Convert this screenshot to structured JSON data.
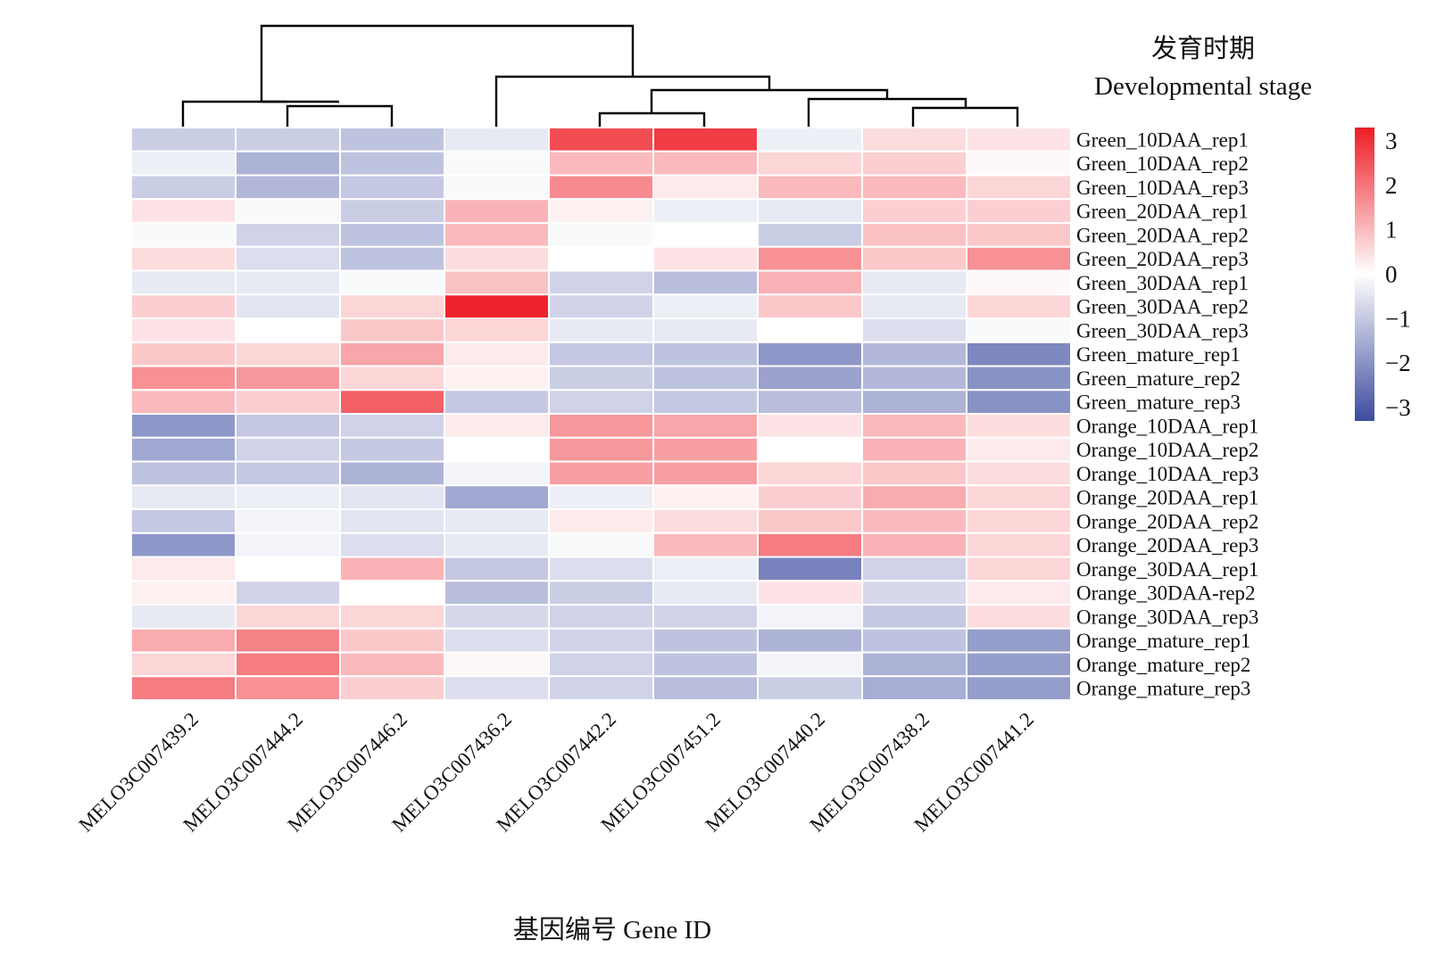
{
  "chart_data": {
    "type": "heatmap",
    "title": "",
    "legend_title_line1": "发育时期",
    "legend_title_line2": "Developmental stage",
    "xlabel": "基因编号 Gene ID",
    "ylabel": "",
    "colorbar": {
      "range": [
        -3.3,
        3.3
      ],
      "ticks": [
        3,
        2,
        1,
        0,
        -1,
        -2,
        -3
      ],
      "tick_labels": [
        "3",
        "2",
        "1",
        "0",
        "−1",
        "−2",
        "−3"
      ],
      "colors": {
        "low": "#3d4ba0",
        "mid": "#ffffff",
        "high": "#ee1c25"
      }
    },
    "columns": [
      "MELO3C007439.2",
      "MELO3C007444.2",
      "MELO3C007446.2",
      "MELO3C007436.2",
      "MELO3C007442.2",
      "MELO3C007451.2",
      "MELO3C007440.2",
      "MELO3C007438.2",
      "MELO3C007441.2"
    ],
    "rows": [
      "Green_10DAA_rep1",
      "Green_10DAA_rep2",
      "Green_10DAA_rep3",
      "Green_20DAA_rep1",
      "Green_20DAA_rep2",
      "Green_20DAA_rep3",
      "Green_30DAA_rep1",
      "Green_30DAA_rep2",
      "Green_30DAA_rep3",
      "Green_mature_rep1",
      "Green_mature_rep2",
      "Green_mature_rep3",
      "Orange_10DAA_rep1",
      "Orange_10DAA_rep2",
      "Orange_10DAA_rep3",
      "Orange_20DAA_rep1",
      "Orange_20DAA_rep2",
      "Orange_20DAA_rep3",
      "Orange_30DAA_rep1",
      "Orange_30DAA-rep2",
      "Orange_30DAA_rep3",
      "Orange_mature_rep1",
      "Orange_mature_rep2",
      "Orange_mature_rep3"
    ],
    "values": [
      [
        -0.9,
        -0.9,
        -1.1,
        -0.4,
        2.6,
        2.8,
        -0.3,
        0.5,
        0.4
      ],
      [
        -0.3,
        -1.4,
        -1.1,
        -0.1,
        1.0,
        1.0,
        0.6,
        0.7,
        0.1
      ],
      [
        -0.9,
        -1.3,
        -1.0,
        -0.1,
        1.7,
        0.3,
        1.0,
        1.0,
        0.6
      ],
      [
        0.4,
        -0.1,
        -0.9,
        1.1,
        0.2,
        -0.3,
        -0.4,
        0.7,
        0.7
      ],
      [
        -0.1,
        -0.8,
        -1.1,
        1.0,
        -0.1,
        0.0,
        -0.9,
        0.9,
        0.8
      ],
      [
        0.5,
        -0.6,
        -1.1,
        0.5,
        0.0,
        0.4,
        1.6,
        0.8,
        1.6
      ],
      [
        -0.4,
        -0.4,
        -0.1,
        0.9,
        -0.8,
        -1.2,
        1.1,
        -0.4,
        0.1
      ],
      [
        0.7,
        -0.5,
        0.6,
        3.2,
        -0.8,
        -0.3,
        0.8,
        -0.4,
        0.6
      ],
      [
        0.4,
        0.0,
        0.8,
        0.6,
        -0.4,
        -0.4,
        0.0,
        -0.6,
        -0.1
      ],
      [
        0.8,
        0.6,
        1.3,
        0.3,
        -1.0,
        -1.1,
        -1.9,
        -1.3,
        -2.2
      ],
      [
        1.6,
        1.5,
        0.6,
        0.2,
        -0.9,
        -1.1,
        -1.7,
        -1.3,
        -2.0
      ],
      [
        1.0,
        0.7,
        2.3,
        -1.0,
        -0.8,
        -1.0,
        -1.2,
        -1.4,
        -2.0
      ],
      [
        -1.9,
        -1.0,
        -0.8,
        0.3,
        1.5,
        1.3,
        0.4,
        1.0,
        0.5
      ],
      [
        -1.6,
        -0.8,
        -1.0,
        0.0,
        1.5,
        1.4,
        0.0,
        1.1,
        0.3
      ],
      [
        -1.1,
        -1.0,
        -1.4,
        -0.2,
        1.4,
        1.4,
        0.6,
        0.8,
        0.5
      ],
      [
        -0.4,
        -0.3,
        -0.5,
        -1.6,
        -0.3,
        0.2,
        0.7,
        1.2,
        0.6
      ],
      [
        -1.0,
        -0.2,
        -0.5,
        -0.4,
        0.3,
        0.5,
        0.8,
        1.0,
        0.6
      ],
      [
        -1.9,
        -0.2,
        -0.6,
        -0.4,
        -0.1,
        1.0,
        1.9,
        1.1,
        0.6
      ],
      [
        0.3,
        0.0,
        1.1,
        -1.0,
        -0.6,
        -0.3,
        -2.3,
        -0.8,
        0.6
      ],
      [
        0.2,
        -0.8,
        0.0,
        -1.2,
        -0.9,
        -0.4,
        0.4,
        -0.7,
        0.3
      ],
      [
        -0.4,
        0.6,
        0.6,
        -0.7,
        -0.8,
        -0.8,
        -0.2,
        -1.0,
        0.5
      ],
      [
        1.2,
        1.8,
        0.8,
        -0.6,
        -0.8,
        -1.1,
        -1.4,
        -1.1,
        -1.8
      ],
      [
        0.6,
        1.9,
        1.0,
        0.1,
        -0.8,
        -1.1,
        -0.2,
        -1.4,
        -1.8
      ],
      [
        1.9,
        1.6,
        0.7,
        -0.6,
        -0.8,
        -1.2,
        -0.9,
        -1.5,
        -1.8
      ]
    ]
  }
}
